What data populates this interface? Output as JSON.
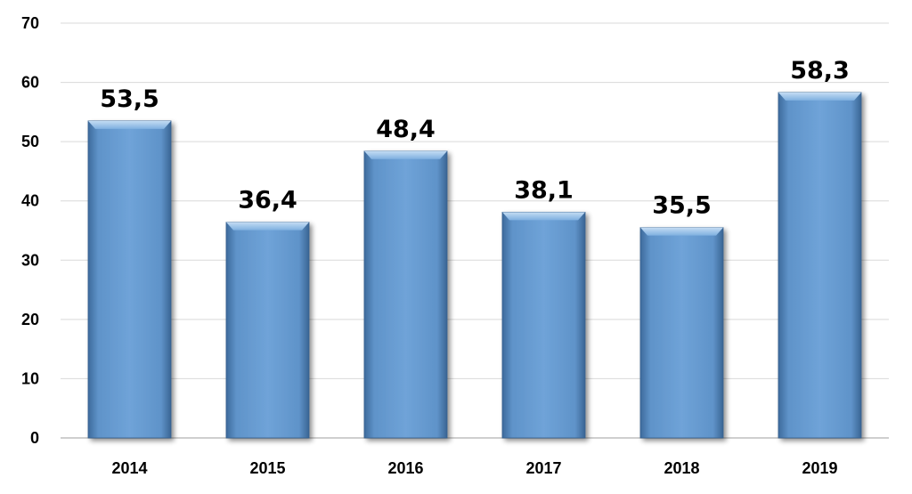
{
  "chart_data": {
    "type": "bar",
    "categories": [
      "2014",
      "2015",
      "2016",
      "2017",
      "2018",
      "2019"
    ],
    "values": [
      53.5,
      36.4,
      48.4,
      38.1,
      35.5,
      58.3
    ],
    "value_labels": [
      "53,5",
      "36,4",
      "48,4",
      "38,1",
      "35,5",
      "58,3"
    ],
    "y_ticks": [
      "0",
      "10",
      "20",
      "30",
      "40",
      "50",
      "60",
      "70"
    ],
    "ylim": [
      0,
      70
    ],
    "grid": true,
    "legend": "none",
    "title": "",
    "xlabel": "",
    "ylabel": "",
    "colors": {
      "bar": "#6b9fd4",
      "bar_dark": "#3f6fa3",
      "bar_light": "#a9cbef",
      "grid": "#d9d9d9",
      "axis": "#bfbfbf"
    }
  }
}
